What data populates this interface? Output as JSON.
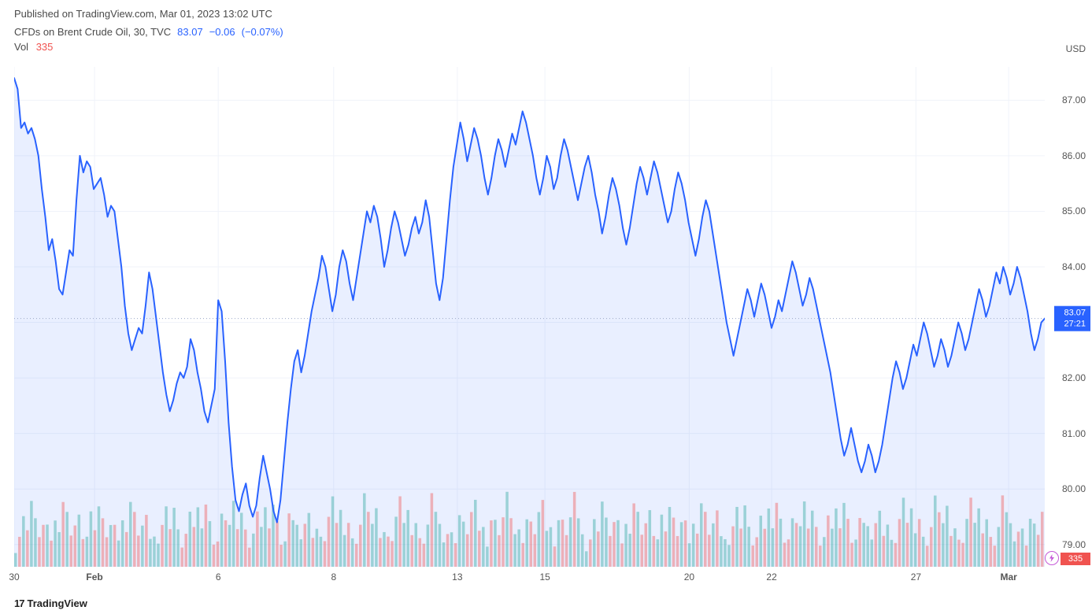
{
  "header": {
    "published_text": "Published on TradingView.com, Mar 01, 2023 13:02 UTC"
  },
  "info": {
    "symbol_text": "CFDs on Brent Crude Oil, 30, TVC",
    "price": "83.07",
    "change_abs": "−0.06",
    "change_pct": "(−0.07%)"
  },
  "volume": {
    "label": "Vol",
    "value": "335"
  },
  "footer": {
    "brand": "TradingView",
    "logo_text": "17"
  },
  "chart": {
    "type": "area-line",
    "line_color": "#2962ff",
    "line_width": 2,
    "fill_color": "rgba(41,98,255,0.10)",
    "grid_color": "#f0f3fa",
    "dotted_line_color": "#9aa7c7",
    "background_color": "#ffffff",
    "y_unit": "USD",
    "ylim": [
      78.6,
      87.6
    ],
    "y_ticks": [
      79.0,
      80.0,
      81.0,
      82.0,
      83.0,
      84.0,
      85.0,
      86.0,
      87.0
    ],
    "current_price": 83.07,
    "current_price_label": "83.07",
    "countdown_label": "27:21",
    "x_ticks": [
      {
        "pos": 0.0,
        "label": "30"
      },
      {
        "pos": 0.078,
        "label": "Feb"
      },
      {
        "pos": 0.198,
        "label": "6"
      },
      {
        "pos": 0.31,
        "label": "8"
      },
      {
        "pos": 0.43,
        "label": "13"
      },
      {
        "pos": 0.515,
        "label": "15"
      },
      {
        "pos": 0.655,
        "label": "20"
      },
      {
        "pos": 0.735,
        "label": "22"
      },
      {
        "pos": 0.875,
        "label": "27"
      },
      {
        "pos": 0.965,
        "label": "Mar"
      }
    ],
    "price_series": [
      87.4,
      87.2,
      86.5,
      86.6,
      86.4,
      86.5,
      86.3,
      86.0,
      85.4,
      84.9,
      84.3,
      84.5,
      84.1,
      83.6,
      83.5,
      83.9,
      84.3,
      84.2,
      85.2,
      86.0,
      85.7,
      85.9,
      85.8,
      85.4,
      85.5,
      85.6,
      85.3,
      84.9,
      85.1,
      85.0,
      84.5,
      84.0,
      83.3,
      82.8,
      82.5,
      82.7,
      82.9,
      82.8,
      83.3,
      83.9,
      83.6,
      83.1,
      82.6,
      82.1,
      81.7,
      81.4,
      81.6,
      81.9,
      82.1,
      82.0,
      82.2,
      82.7,
      82.5,
      82.1,
      81.8,
      81.4,
      81.2,
      81.5,
      81.8,
      83.4,
      83.2,
      82.3,
      81.2,
      80.4,
      79.8,
      79.6,
      79.9,
      80.1,
      79.7,
      79.5,
      79.7,
      80.2,
      80.6,
      80.3,
      80.0,
      79.6,
      79.4,
      79.8,
      80.5,
      81.2,
      81.8,
      82.3,
      82.5,
      82.1,
      82.4,
      82.8,
      83.2,
      83.5,
      83.8,
      84.2,
      84.0,
      83.6,
      83.2,
      83.5,
      84.0,
      84.3,
      84.1,
      83.7,
      83.4,
      83.8,
      84.2,
      84.6,
      85.0,
      84.8,
      85.1,
      84.9,
      84.5,
      84.0,
      84.3,
      84.7,
      85.0,
      84.8,
      84.5,
      84.2,
      84.4,
      84.7,
      84.9,
      84.6,
      84.8,
      85.2,
      84.9,
      84.3,
      83.7,
      83.4,
      83.8,
      84.5,
      85.2,
      85.8,
      86.2,
      86.6,
      86.3,
      85.9,
      86.2,
      86.5,
      86.3,
      86.0,
      85.6,
      85.3,
      85.6,
      86.0,
      86.3,
      86.1,
      85.8,
      86.1,
      86.4,
      86.2,
      86.5,
      86.8,
      86.6,
      86.3,
      86.0,
      85.6,
      85.3,
      85.6,
      86.0,
      85.8,
      85.4,
      85.6,
      86.0,
      86.3,
      86.1,
      85.8,
      85.5,
      85.2,
      85.5,
      85.8,
      86.0,
      85.7,
      85.3,
      85.0,
      84.6,
      84.9,
      85.3,
      85.6,
      85.4,
      85.1,
      84.7,
      84.4,
      84.7,
      85.1,
      85.5,
      85.8,
      85.6,
      85.3,
      85.6,
      85.9,
      85.7,
      85.4,
      85.1,
      84.8,
      85.0,
      85.4,
      85.7,
      85.5,
      85.2,
      84.8,
      84.5,
      84.2,
      84.5,
      84.9,
      85.2,
      85.0,
      84.6,
      84.2,
      83.8,
      83.4,
      83.0,
      82.7,
      82.4,
      82.7,
      83.0,
      83.3,
      83.6,
      83.4,
      83.1,
      83.4,
      83.7,
      83.5,
      83.2,
      82.9,
      83.1,
      83.4,
      83.2,
      83.5,
      83.8,
      84.1,
      83.9,
      83.6,
      83.3,
      83.5,
      83.8,
      83.6,
      83.3,
      83.0,
      82.7,
      82.4,
      82.1,
      81.7,
      81.3,
      80.9,
      80.6,
      80.8,
      81.1,
      80.8,
      80.5,
      80.3,
      80.5,
      80.8,
      80.6,
      80.3,
      80.5,
      80.8,
      81.2,
      81.6,
      82.0,
      82.3,
      82.1,
      81.8,
      82.0,
      82.3,
      82.6,
      82.4,
      82.7,
      83.0,
      82.8,
      82.5,
      82.2,
      82.4,
      82.7,
      82.5,
      82.2,
      82.4,
      82.7,
      83.0,
      82.8,
      82.5,
      82.7,
      83.0,
      83.3,
      83.6,
      83.4,
      83.1,
      83.3,
      83.6,
      83.9,
      83.7,
      84.0,
      83.8,
      83.5,
      83.7,
      84.0,
      83.8,
      83.5,
      83.2,
      82.8,
      82.5,
      82.7,
      83.0,
      83.07
    ],
    "volume": {
      "max": 0.88,
      "up_color": "rgba(38,166,154,0.4)",
      "down_color": "rgba(240,83,80,0.4)",
      "badge_value": "335",
      "heights": [
        0.25,
        0.4,
        0.55,
        0.35,
        0.6,
        0.45,
        0.3,
        0.5,
        0.65,
        0.4,
        0.55,
        0.35,
        0.6,
        0.5,
        0.3,
        0.45,
        0.7,
        0.5,
        0.4,
        0.6,
        0.35,
        0.55,
        0.45,
        0.3,
        0.5,
        0.65,
        0.4,
        0.55,
        0.35,
        0.6,
        0.5,
        0.3,
        0.45,
        0.7,
        0.5,
        0.4
      ],
      "pattern": [
        "u",
        "d",
        "u",
        "d",
        "u",
        "u",
        "d",
        "d",
        "u",
        "d",
        "u",
        "u",
        "d",
        "u",
        "d",
        "d",
        "u",
        "d",
        "u",
        "u",
        "d",
        "u",
        "d",
        "d",
        "u",
        "d",
        "u",
        "u",
        "d",
        "u",
        "d",
        "d",
        "u",
        "d",
        "u",
        "u"
      ]
    },
    "flash_icon_color": "#c558d8"
  }
}
